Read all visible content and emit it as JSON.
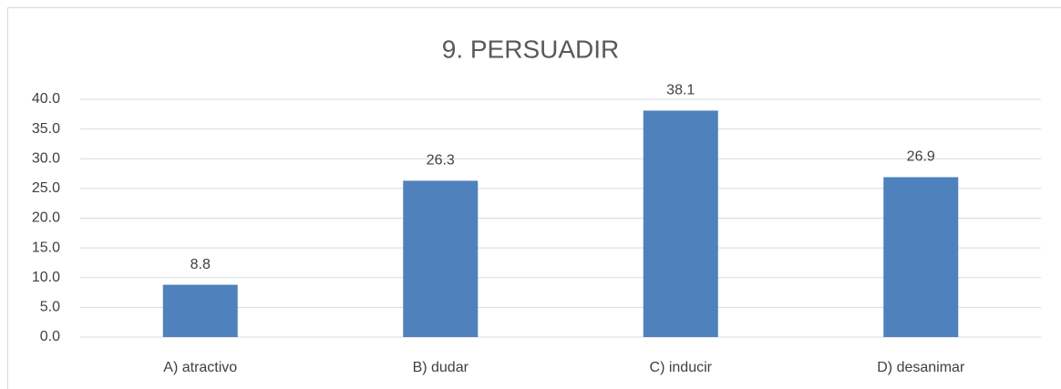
{
  "chart_data": {
    "type": "bar",
    "title": "9. PERSUADIR",
    "categories": [
      "A) atractivo",
      "B) dudar",
      "C) inducir",
      "D) desanimar"
    ],
    "values": [
      8.8,
      26.3,
      38.1,
      26.9
    ],
    "color": "#4f81bd",
    "ylim": [
      0,
      40
    ],
    "yticks": [
      {
        "value": 0,
        "label": "0.0"
      },
      {
        "value": 5,
        "label": "5.0"
      },
      {
        "value": 10,
        "label": "10.0"
      },
      {
        "value": 15,
        "label": "15.0"
      },
      {
        "value": 20,
        "label": "20.0"
      },
      {
        "value": 25,
        "label": "25.0"
      },
      {
        "value": 30,
        "label": "30.0"
      },
      {
        "value": 35,
        "label": "35.0"
      },
      {
        "value": 40,
        "label": "40.0"
      }
    ],
    "grid": true
  }
}
